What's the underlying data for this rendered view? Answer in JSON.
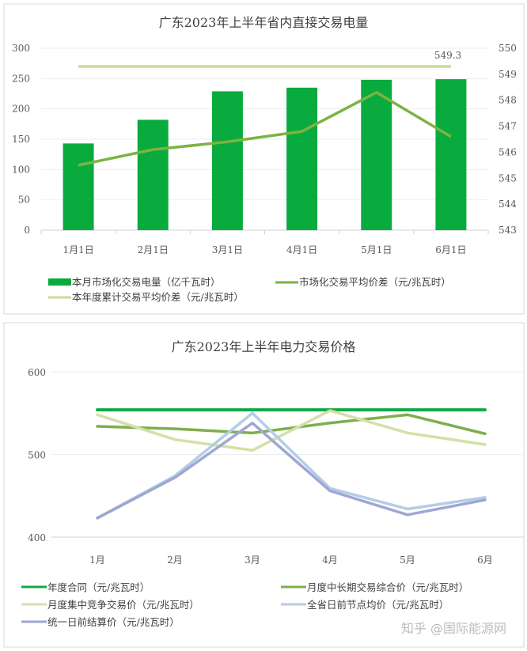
{
  "chart_data": [
    {
      "type": "bar+line",
      "title": "广东2023年上半年省内直接交易电量",
      "categories": [
        "1月1日",
        "2月1日",
        "3月1日",
        "4月1日",
        "5月1日",
        "6月1日"
      ],
      "ylim_left": [
        0,
        300
      ],
      "yticks_left": [
        "0",
        "50",
        "100",
        "150",
        "200",
        "250",
        "300"
      ],
      "ylim_right": [
        543,
        550
      ],
      "yticks_right": [
        "543",
        "544",
        "545",
        "546",
        "547",
        "548",
        "549",
        "550"
      ],
      "grid": true,
      "legend": "bottom",
      "series": [
        {
          "name": "本月市场化交易电量（亿千瓦时）",
          "type": "bar",
          "axis": "left",
          "color": "#0aab3e",
          "values": [
            143,
            182,
            229,
            235,
            248,
            249
          ]
        },
        {
          "name": "市场化交易平均价差（元/兆瓦时）",
          "type": "line",
          "axis": "right",
          "color": "#7cb342",
          "values": [
            545.5,
            546.1,
            546.4,
            546.8,
            548.3,
            546.6
          ]
        },
        {
          "name": "本年度累计交易平均价差（元/兆瓦时）",
          "type": "line",
          "axis": "right",
          "color": "#c8dc9a",
          "values": [
            549.3,
            549.3,
            549.3,
            549.3,
            549.3,
            549.3
          ]
        }
      ],
      "annotations": [
        "549.3"
      ]
    },
    {
      "type": "line",
      "title": "广东2023年上半年电力交易价格",
      "categories": [
        "1月",
        "2月",
        "3月",
        "4月",
        "5月",
        "6月"
      ],
      "ylim": [
        400,
        600
      ],
      "yticks": [
        "400",
        "500",
        "600"
      ],
      "grid": true,
      "legend": "bottom",
      "series": [
        {
          "name": "年度合同（元/兆瓦时）",
          "color": "#12a84a",
          "values": [
            554,
            554,
            554,
            554,
            554,
            554
          ]
        },
        {
          "name": "月度中长期交易综合价（元/兆瓦时）",
          "color": "#7fae4e",
          "values": [
            534,
            531,
            526,
            538,
            548,
            525
          ]
        },
        {
          "name": "月度集中竞争交易价（元/兆瓦时）",
          "color": "#d3e0a8",
          "values": [
            548,
            518,
            505,
            553,
            526,
            512
          ]
        },
        {
          "name": "全省日前节点均价（元/兆瓦时）",
          "color": "#b4cde4",
          "values": [
            423,
            474,
            550,
            459,
            434,
            448
          ]
        },
        {
          "name": "统一日前结算价（元/兆瓦时）",
          "color": "#9ea7d4",
          "values": [
            423,
            472,
            538,
            456,
            427,
            445
          ]
        }
      ]
    }
  ],
  "watermark": "知乎 @国际能源网"
}
